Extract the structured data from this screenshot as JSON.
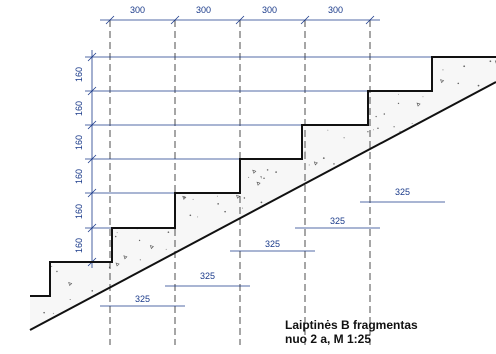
{
  "drawing": {
    "top_tread_dims": [
      "300",
      "300",
      "300",
      "300"
    ],
    "riser_dims": [
      "160",
      "160",
      "160",
      "160",
      "160",
      "160"
    ],
    "slab_dims": [
      "325",
      "325",
      "325",
      "325",
      "325"
    ],
    "colors": {
      "concrete_line": "#111111",
      "dimension": "#1a3a8a",
      "hatch": "#666666"
    }
  },
  "caption": {
    "line1": "Laiptinės B fragmentas",
    "line2": "nuo 2 a, M 1:25"
  }
}
